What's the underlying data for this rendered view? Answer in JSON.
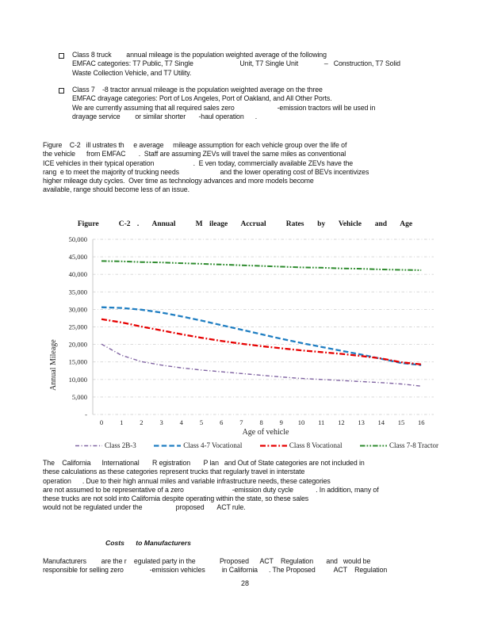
{
  "document": {
    "page_number": "28",
    "bullets": [
      {
        "lines": [
          "Class 8 truck        annual mileage is the population weighted average of the following",
          "EMFAC categories: T7 Public, T7 Single                         Unit, T7 Single Unit              –   Construction, T7 Solid",
          "Waste Collection Vehicle, and T7 Utility."
        ]
      },
      {
        "lines": [
          "Class 7    -8 tractor annual mileage is the population weighted average on the three",
          "EMFAC drayage categories: Port of Los Angeles, Port of Oakland, and All Other Ports.",
          "We are currently assuming that all required sales zero                       -emission tractors will be used in",
          "drayage service        or similar shorter       -haul operation      ."
        ]
      }
    ],
    "figure_paragraph_lines": [
      "Figure    C-2   ill ustrates th     e average     mileage assumption for each vehicle group over the life of",
      "the vehicle      from EMFAC       .  Staff are assuming ZEVs will travel the same miles as conventional",
      "ICE vehicles in their typical operation                     .  E ven today, commercially available ZEVs have the",
      "rang  e to meet the majority of trucking needs                      and the lower operating cost of BEVs incentivizes",
      "higher mileage duty cycles.  Over time as technology advances and more models become",
      "available, range should become less of an issue."
    ],
    "figure_title": "Figure   C-2 .  Annual   M ileage  Accrual   Rates  by  Vehicle  and  Age",
    "irp_paragraph_lines": [
      "The    California      International       R egistration       P lan   and Out of State categories are not included in",
      "these calculations as these categories represent trucks that regularly travel in interstate",
      "operation      . Due to their high annual miles and variable infrastructure needs, these categories",
      "are not assumed to be representative of a zero                          -emission duty cycle            . In addition, many of",
      "these trucks are not sold into California despite operating within the state, so these sales",
      "would not be regulated under the                  proposed       ACT rule."
    ],
    "costs_heading": "Costs      to Manufacturers",
    "manufacturers_paragraph_lines": [
      "Manufacturers        are the r    egulated party in the             Proposed      ACT    Regulation       and   would be",
      "responsible for selling zero              -emission vehicles         in California      . The Proposed          ACT    Regulation"
    ]
  },
  "chart_data": {
    "type": "line",
    "title": "Figure C-2. Annual Mileage Accrual Rates by Vehicle and Age",
    "xlabel": "Age of vehicle",
    "ylabel": "Annual Mileage",
    "x": [
      0,
      1,
      2,
      3,
      4,
      5,
      6,
      7,
      8,
      9,
      10,
      11,
      12,
      13,
      14,
      15,
      16
    ],
    "ylim": [
      0,
      50000
    ],
    "ytick_step": 5000,
    "ytick_labels": [
      "-",
      "5,000",
      "10,000",
      "15,000",
      "20,000",
      "25,000",
      "30,000",
      "35,000",
      "40,000",
      "45,000",
      "50,000"
    ],
    "grid": true,
    "grid_color": "#D4D4D4",
    "legend_position": "bottom",
    "series": [
      {
        "name": "Class 2B-3",
        "color": "#8064A2",
        "dash": "5 2.5 1.2 2.5",
        "width": 1.4,
        "values": [
          20100,
          16900,
          15100,
          14100,
          13300,
          12700,
          12200,
          11700,
          11200,
          10700,
          10300,
          10000,
          9700,
          9400,
          9100,
          8700,
          8100
        ]
      },
      {
        "name": "Class 4-7 Vocational",
        "color": "#1F7EC2",
        "dash": "6.5 3.2",
        "width": 2.3,
        "values": [
          30600,
          30400,
          29900,
          29100,
          28000,
          26800,
          25500,
          24200,
          22900,
          21600,
          20400,
          19300,
          18200,
          17100,
          15900,
          14700,
          14100
        ]
      },
      {
        "name": "Class 8 Vocational",
        "color": "#E60000",
        "dash": "7 2.5 1.8 2.5",
        "width": 2.3,
        "values": [
          27200,
          26300,
          25100,
          24000,
          22900,
          21900,
          21000,
          20200,
          19500,
          18900,
          18300,
          17800,
          17300,
          16700,
          16000,
          14900,
          14300
        ]
      },
      {
        "name": "Class 7-8 Tractor",
        "color": "#2E8B2E",
        "dash": "6.5 2 1.8 2 1.8 2",
        "width": 2.0,
        "values": [
          43800,
          43700,
          43500,
          43400,
          43200,
          43000,
          42800,
          42600,
          42400,
          42200,
          42000,
          41900,
          41700,
          41600,
          41400,
          41300,
          41200
        ]
      }
    ]
  }
}
